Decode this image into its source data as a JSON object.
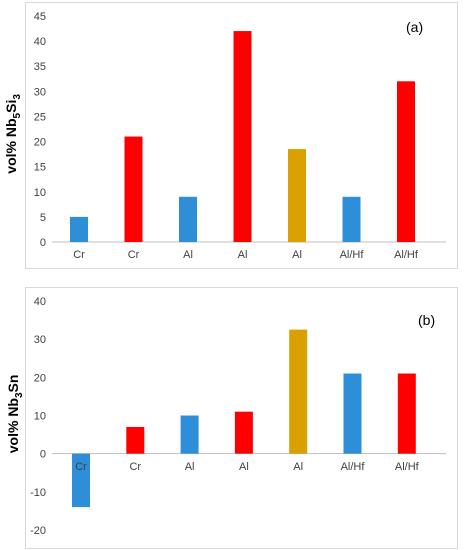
{
  "chart_data": [
    {
      "type": "bar",
      "panel_label": "(a)",
      "ylabel_main": "vol% Nb",
      "ylabel_sub1": "5",
      "ylabel_mid": "Si",
      "ylabel_sub2": "3",
      "categories": [
        "Cr",
        "Cr",
        "Al",
        "Al",
        "Al",
        "Al/Hf",
        "Al/Hf"
      ],
      "values": [
        5,
        21,
        9,
        42,
        18.5,
        9,
        32
      ],
      "colors": [
        "#2E8FD8",
        "#FF0000",
        "#2E8FD8",
        "#FF0000",
        "#D9A000",
        "#2E8FD8",
        "#FF0000"
      ],
      "ylim": [
        0,
        45
      ],
      "yticks": [
        0,
        5,
        10,
        15,
        20,
        25,
        30,
        35,
        40,
        45
      ],
      "grid": false
    },
    {
      "type": "bar",
      "panel_label": "(b)",
      "ylabel_main": "vol% Nb",
      "ylabel_sub1": "3",
      "ylabel_mid": "Sn",
      "ylabel_sub2": "",
      "categories": [
        "Cr",
        "Cr",
        "Al",
        "Al",
        "Al",
        "Al/Hf",
        "Al/Hf"
      ],
      "values": [
        -14,
        7,
        10,
        11,
        32.5,
        21,
        21
      ],
      "colors": [
        "#2E8FD8",
        "#FF0000",
        "#2E8FD8",
        "#FF0000",
        "#D9A000",
        "#2E8FD8",
        "#FF0000"
      ],
      "ylim": [
        -20,
        40
      ],
      "yticks": [
        -20,
        -10,
        0,
        10,
        20,
        30,
        40
      ],
      "grid": false
    }
  ]
}
